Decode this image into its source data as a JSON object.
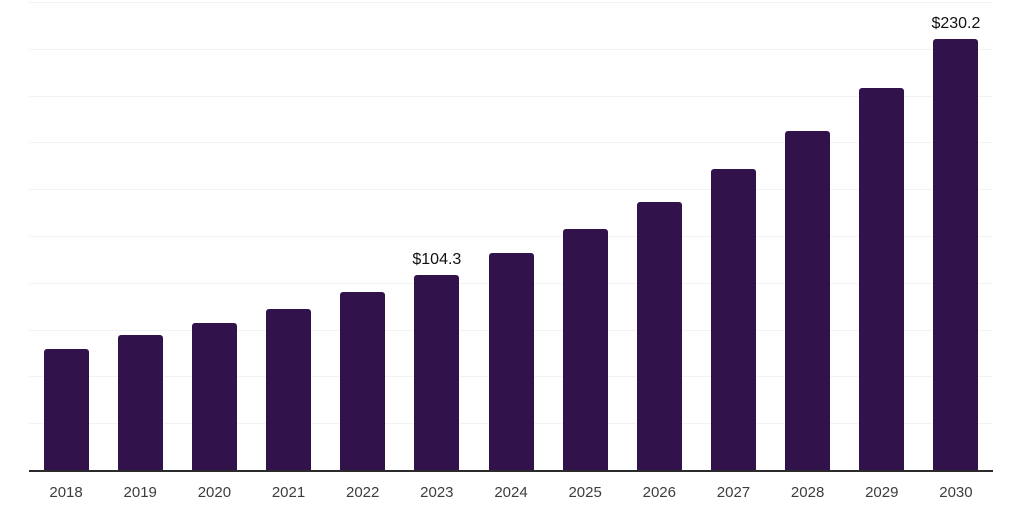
{
  "chart_data": {
    "type": "bar",
    "categories": [
      "2018",
      "2019",
      "2020",
      "2021",
      "2022",
      "2023",
      "2024",
      "2025",
      "2026",
      "2027",
      "2028",
      "2029",
      "2030"
    ],
    "values": [
      64.7,
      72.2,
      78.4,
      86.0,
      94.9,
      104.3,
      116.0,
      128.7,
      143.4,
      160.8,
      181.2,
      204.1,
      230.2
    ],
    "annotations": [
      {
        "index": 5,
        "text": "$104.3"
      },
      {
        "index": 12,
        "text": "$230.2"
      }
    ],
    "ylim": [
      0,
      250
    ],
    "gridline_step": 25,
    "grid_on": true,
    "legend": "none",
    "xlabel": "",
    "ylabel": "",
    "colors": {
      "bar": "#31124b",
      "gridline": "#f2f2f2",
      "axis_line": "#2b2b2b",
      "tick_label": "#3d3d3d",
      "annotation": "#111111",
      "background": "#ffffff"
    }
  }
}
